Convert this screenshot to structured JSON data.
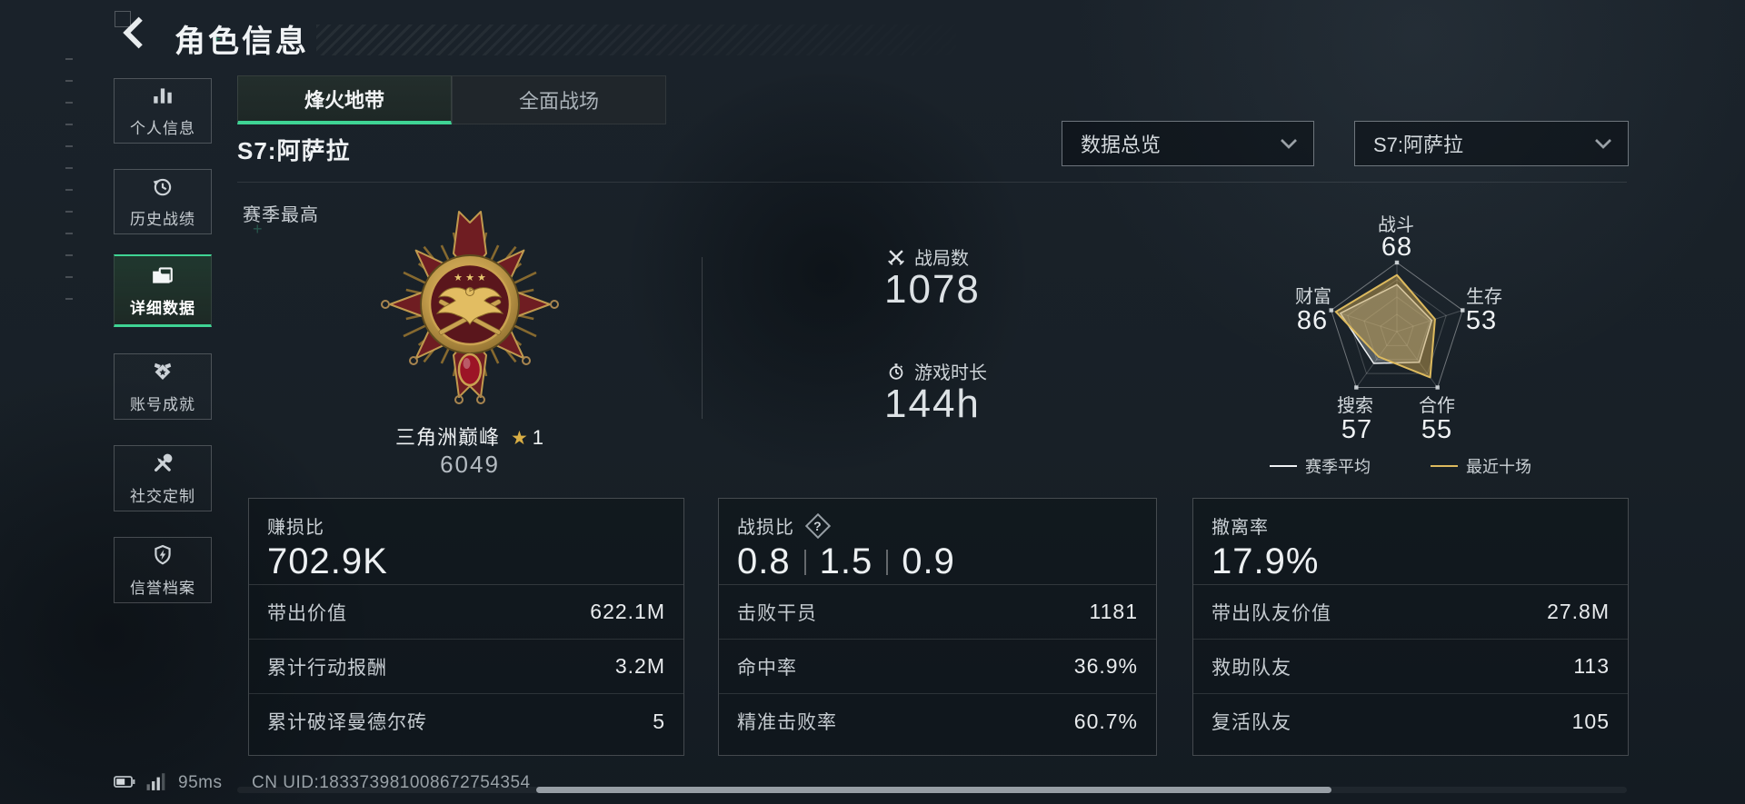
{
  "header": {
    "title": "角色信息"
  },
  "decorations": {
    "plus": "+"
  },
  "sidebar": {
    "items": [
      {
        "label": "个人信息",
        "icon": "bar-chart-icon",
        "selected": false
      },
      {
        "label": "历史战绩",
        "icon": "history-clock-icon",
        "selected": false
      },
      {
        "label": "详细数据",
        "icon": "folder-icon",
        "selected": true
      },
      {
        "label": "账号成就",
        "icon": "achievement-badge-icon",
        "selected": false
      },
      {
        "label": "社交定制",
        "icon": "tools-icon",
        "selected": false
      },
      {
        "label": "信誉档案",
        "icon": "shield-lightning-icon",
        "selected": false
      }
    ]
  },
  "tabs": [
    {
      "label": "烽火地带",
      "active": true
    },
    {
      "label": "全面战场",
      "active": false
    }
  ],
  "season_title": "S7:阿萨拉",
  "filters": {
    "data_overview": "数据总览",
    "season": "S7:阿萨拉",
    "chevron_icon": "chevron-down-icon"
  },
  "season_best": {
    "section_label": "赛季最高",
    "rank_name": "三角洲巅峰",
    "star_icon": "★",
    "star_level": "1",
    "rank_score": "6049"
  },
  "overview_stats": [
    {
      "icon": "crossed-swords-icon",
      "label": "战局数",
      "value": "1078"
    },
    {
      "icon": "stopwatch-icon",
      "label": "游戏时长",
      "value": "144h"
    }
  ],
  "chart_data": {
    "type": "radar",
    "categories": [
      "战斗",
      "生存",
      "合作",
      "搜索",
      "财富"
    ],
    "axis_range": [
      0,
      100
    ],
    "grid_levels": [
      25,
      50,
      75,
      100
    ],
    "series": [
      {
        "name": "赛季平均",
        "values": [
          68,
          53,
          55,
          57,
          86
        ],
        "color": "#eef1f3",
        "fill": "rgba(222,228,232,0.30)"
      },
      {
        "name": "最近十场",
        "values": [
          82,
          58,
          82,
          45,
          93
        ],
        "color": "#ddba5e",
        "fill": "rgba(196,160,80,0.50)"
      }
    ],
    "legend_position": "bottom"
  },
  "cards": [
    {
      "title": "赚损比",
      "value": "702.9K",
      "rows": [
        {
          "label": "带出价值",
          "value": "622.1M"
        },
        {
          "label": "累计行动报酬",
          "value": "3.2M"
        },
        {
          "label": "累计破译曼德尔砖",
          "value": "5"
        }
      ]
    },
    {
      "title": "战损比",
      "help": "?",
      "values": [
        "0.8",
        "1.5",
        "0.9"
      ],
      "rows": [
        {
          "label": "击败干员",
          "value": "1181"
        },
        {
          "label": "命中率",
          "value": "36.9%"
        },
        {
          "label": "精准击败率",
          "value": "60.7%"
        }
      ]
    },
    {
      "title": "撤离率",
      "value": "17.9%",
      "rows": [
        {
          "label": "带出队友价值",
          "value": "27.8M"
        },
        {
          "label": "救助队友",
          "value": "113"
        },
        {
          "label": "复活队友",
          "value": "105"
        }
      ]
    }
  ],
  "status_bar": {
    "ping": "95ms",
    "uid": "CN UID:183373981008672754354"
  },
  "colors": {
    "accent_teal": "#3fd494",
    "gold": "#d8b65c",
    "background": "#161d24",
    "medal_red": "#6f1d22"
  }
}
